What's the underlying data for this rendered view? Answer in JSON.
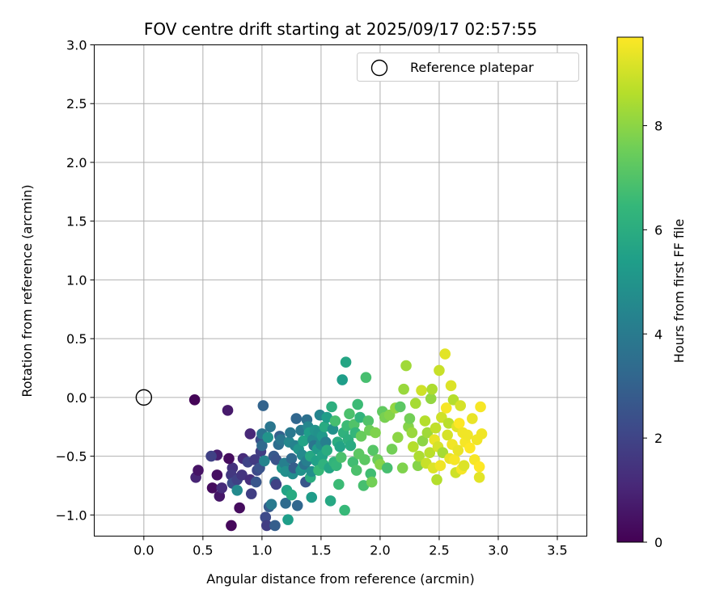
{
  "chart_data": {
    "type": "scatter",
    "title": "FOV centre drift starting at 2025/09/17 02:57:55",
    "xlabel": "Angular distance from reference (arcmin)",
    "ylabel": "Rotation from reference (arcmin)",
    "xlim": [
      -0.42,
      3.75
    ],
    "ylim": [
      -1.18,
      3.0
    ],
    "xticks": [
      0.0,
      0.5,
      1.0,
      1.5,
      2.0,
      2.5,
      3.0,
      3.5
    ],
    "xtick_labels": [
      "0.0",
      "0.5",
      "1.0",
      "1.5",
      "2.0",
      "2.5",
      "3.0",
      "3.5"
    ],
    "yticks": [
      -1.0,
      -0.5,
      0.0,
      0.5,
      1.0,
      1.5,
      2.0,
      2.5,
      3.0
    ],
    "ytick_labels": [
      "−1.0",
      "−0.5",
      "0.0",
      "0.5",
      "1.0",
      "1.5",
      "2.0",
      "2.5",
      "3.0"
    ],
    "grid": true,
    "legend": {
      "placement": "upper-right",
      "entries": [
        {
          "label": "Reference platepar",
          "marker": "open-circle"
        }
      ]
    },
    "reference_point": {
      "x": 0.0,
      "y": 0.0
    },
    "colorbar": {
      "label": "Hours from first FF file",
      "colormap": "viridis",
      "range": [
        0,
        9.7
      ],
      "ticks": [
        0,
        2,
        4,
        6,
        8
      ],
      "tick_labels": [
        "0",
        "2",
        "4",
        "6",
        "8"
      ]
    },
    "colors": [
      "#440154",
      "#482878",
      "#3e4989",
      "#31688e",
      "#26828e",
      "#1f9e89",
      "#35b779",
      "#6ece58",
      "#b5de2b",
      "#fde725"
    ],
    "points": [
      [
        0.43,
        -0.02,
        0.1
      ],
      [
        0.71,
        -0.11,
        0.7
      ],
      [
        0.74,
        -1.09,
        0.2
      ],
      [
        0.81,
        -0.94,
        0.3
      ],
      [
        0.44,
        -0.68,
        1.0
      ],
      [
        0.46,
        -0.62,
        0.5
      ],
      [
        0.58,
        -0.77,
        0.3
      ],
      [
        0.62,
        -0.66,
        0.4
      ],
      [
        0.64,
        -0.84,
        0.6
      ],
      [
        0.66,
        -0.77,
        1.2
      ],
      [
        0.62,
        -0.49,
        0.8
      ],
      [
        0.57,
        -0.5,
        1.9
      ],
      [
        0.75,
        -0.6,
        1.4
      ],
      [
        0.74,
        -0.66,
        1.6
      ],
      [
        0.72,
        -0.52,
        0.3
      ],
      [
        0.75,
        -0.73,
        2.3
      ],
      [
        0.79,
        -0.7,
        1.9
      ],
      [
        0.79,
        -0.79,
        4.6
      ],
      [
        0.83,
        -0.66,
        1.5
      ],
      [
        0.84,
        -0.52,
        1.2
      ],
      [
        0.88,
        -0.55,
        2.0
      ],
      [
        0.9,
        -0.7,
        1.3
      ],
      [
        0.91,
        -0.82,
        1.8
      ],
      [
        0.9,
        -0.31,
        1.1
      ],
      [
        0.94,
        -0.53,
        1.7
      ],
      [
        0.96,
        -0.62,
        2.2
      ],
      [
        0.98,
        -0.6,
        2.5
      ],
      [
        0.99,
        -0.36,
        2.4
      ],
      [
        0.99,
        -0.46,
        1.8
      ],
      [
        0.95,
        -0.72,
        2.6
      ],
      [
        1.0,
        -0.41,
        3.3
      ],
      [
        1.0,
        -0.31,
        3.7
      ],
      [
        1.01,
        -0.07,
        3.1
      ],
      [
        1.03,
        -1.02,
        2.2
      ],
      [
        1.04,
        -1.09,
        1.8
      ],
      [
        1.02,
        -0.54,
        4.4
      ],
      [
        1.05,
        -0.34,
        5.0
      ],
      [
        1.07,
        -0.25,
        3.8
      ],
      [
        1.06,
        -0.93,
        2.8
      ],
      [
        1.08,
        -0.91,
        4.0
      ],
      [
        1.11,
        -0.72,
        3.6
      ],
      [
        1.12,
        -0.74,
        1.9
      ],
      [
        1.11,
        -1.09,
        2.9
      ],
      [
        1.1,
        -0.5,
        2.7
      ],
      [
        1.12,
        -0.53,
        2.5
      ],
      [
        1.14,
        -0.4,
        3.5
      ],
      [
        1.15,
        -0.33,
        3.0
      ],
      [
        1.16,
        -0.36,
        3.8
      ],
      [
        1.17,
        -0.6,
        5.2
      ],
      [
        1.19,
        -0.56,
        4.2
      ],
      [
        1.2,
        -0.9,
        3.4
      ],
      [
        1.2,
        -0.63,
        4.8
      ],
      [
        1.21,
        -0.79,
        5.6
      ],
      [
        1.22,
        -1.04,
        5.4
      ],
      [
        1.23,
        -0.38,
        4.5
      ],
      [
        1.24,
        -0.3,
        3.9
      ],
      [
        1.25,
        -0.52,
        3.3
      ],
      [
        1.25,
        -0.83,
        5.9
      ],
      [
        1.26,
        -0.65,
        4.7
      ],
      [
        1.27,
        -0.6,
        2.9
      ],
      [
        1.28,
        -0.41,
        4.3
      ],
      [
        1.29,
        -0.18,
        3.2
      ],
      [
        1.3,
        -0.92,
        3.2
      ],
      [
        1.31,
        -0.44,
        5.1
      ],
      [
        1.33,
        -0.62,
        4.9
      ],
      [
        1.33,
        -0.28,
        4.0
      ],
      [
        1.34,
        -0.49,
        4.6
      ],
      [
        1.35,
        -0.58,
        5.2
      ],
      [
        1.35,
        -0.37,
        5.6
      ],
      [
        1.36,
        -0.57,
        3.7
      ],
      [
        1.37,
        -0.72,
        2.6
      ],
      [
        1.38,
        -0.54,
        4.2
      ],
      [
        1.38,
        -0.19,
        3.6
      ],
      [
        1.39,
        -0.25,
        4.5
      ],
      [
        1.4,
        -0.3,
        5.4
      ],
      [
        1.41,
        -0.68,
        6.0
      ],
      [
        1.41,
        -0.5,
        5.8
      ],
      [
        1.42,
        -0.63,
        4.8
      ],
      [
        1.42,
        -0.85,
        5.3
      ],
      [
        1.43,
        -0.36,
        4.6
      ],
      [
        1.44,
        -0.41,
        3.8
      ],
      [
        1.45,
        -0.28,
        5.0
      ],
      [
        1.46,
        -0.54,
        5.5
      ],
      [
        1.47,
        -0.44,
        5.3
      ],
      [
        1.48,
        -0.3,
        4.9
      ],
      [
        1.48,
        -0.62,
        6.5
      ],
      [
        1.49,
        -0.15,
        4.4
      ],
      [
        1.5,
        -0.4,
        4.7
      ],
      [
        1.51,
        -0.5,
        5.6
      ],
      [
        1.51,
        -0.33,
        5.2
      ],
      [
        1.52,
        -0.57,
        6.2
      ],
      [
        1.53,
        -0.25,
        5.9
      ],
      [
        1.54,
        -0.38,
        4.2
      ],
      [
        1.55,
        -0.45,
        6.0
      ],
      [
        1.55,
        -0.17,
        5.4
      ],
      [
        1.57,
        -0.6,
        5.7
      ],
      [
        1.58,
        -0.88,
        5.8
      ],
      [
        1.59,
        -0.08,
        6.1
      ],
      [
        1.6,
        -0.27,
        4.9
      ],
      [
        1.61,
        -0.55,
        6.3
      ],
      [
        1.62,
        -0.2,
        6.8
      ],
      [
        1.63,
        -0.58,
        6.4
      ],
      [
        1.64,
        -0.38,
        6.0
      ],
      [
        1.65,
        -0.74,
        6.6
      ],
      [
        1.66,
        -0.42,
        5.6
      ],
      [
        1.67,
        -0.51,
        6.9
      ],
      [
        1.68,
        0.15,
        5.4
      ],
      [
        1.69,
        -0.3,
        6.2
      ],
      [
        1.7,
        -0.96,
        6.5
      ],
      [
        1.71,
        0.3,
        5.7
      ],
      [
        1.72,
        -0.24,
        6.6
      ],
      [
        1.73,
        -0.36,
        6.1
      ],
      [
        1.74,
        -0.14,
        6.9
      ],
      [
        1.75,
        -0.41,
        5.9
      ],
      [
        1.77,
        -0.55,
        6.7
      ],
      [
        1.78,
        -0.23,
        7.0
      ],
      [
        1.79,
        -0.3,
        6.4
      ],
      [
        1.8,
        -0.62,
        6.9
      ],
      [
        1.81,
        -0.06,
        6.6
      ],
      [
        1.82,
        -0.48,
        7.2
      ],
      [
        1.83,
        -0.17,
        6.3
      ],
      [
        1.84,
        -0.33,
        7.4
      ],
      [
        1.86,
        -0.75,
        6.8
      ],
      [
        1.87,
        -0.53,
        7.2
      ],
      [
        1.88,
        0.17,
        6.8
      ],
      [
        1.9,
        -0.2,
        7.0
      ],
      [
        1.91,
        -0.28,
        7.5
      ],
      [
        1.92,
        -0.65,
        6.7
      ],
      [
        1.93,
        -0.72,
        7.6
      ],
      [
        1.94,
        -0.45,
        7.1
      ],
      [
        1.96,
        -0.3,
        7.8
      ],
      [
        1.98,
        -0.53,
        7.5
      ],
      [
        2.0,
        -0.57,
        7.9
      ],
      [
        2.02,
        -0.12,
        7.3
      ],
      [
        2.04,
        -0.17,
        7.7
      ],
      [
        2.06,
        -0.6,
        6.8
      ],
      [
        2.08,
        -0.15,
        7.9
      ],
      [
        2.1,
        -0.44,
        7.6
      ],
      [
        2.13,
        -0.09,
        8.1
      ],
      [
        2.15,
        -0.34,
        8.0
      ],
      [
        2.17,
        -0.08,
        7.2
      ],
      [
        2.19,
        -0.6,
        7.8
      ],
      [
        2.2,
        0.07,
        8.2
      ],
      [
        2.22,
        0.27,
        8.3
      ],
      [
        2.24,
        -0.25,
        7.9
      ],
      [
        2.25,
        -0.18,
        7.6
      ],
      [
        2.27,
        -0.3,
        8.2
      ],
      [
        2.28,
        -0.42,
        8.6
      ],
      [
        2.3,
        -0.05,
        8.4
      ],
      [
        2.32,
        -0.58,
        7.9
      ],
      [
        2.33,
        -0.5,
        8.5
      ],
      [
        2.35,
        0.06,
        9.0
      ],
      [
        2.36,
        -0.37,
        8.0
      ],
      [
        2.38,
        -0.2,
        8.6
      ],
      [
        2.39,
        -0.56,
        8.9
      ],
      [
        2.4,
        -0.3,
        8.3
      ],
      [
        2.42,
        -0.47,
        8.7
      ],
      [
        2.43,
        -0.01,
        8.1
      ],
      [
        2.44,
        0.07,
        8.5
      ],
      [
        2.45,
        -0.6,
        9.2
      ],
      [
        2.46,
        -0.36,
        9.4
      ],
      [
        2.47,
        -0.26,
        8.8
      ],
      [
        2.48,
        -0.7,
        8.6
      ],
      [
        2.49,
        -0.42,
        9.1
      ],
      [
        2.5,
        0.23,
        8.9
      ],
      [
        2.51,
        -0.58,
        9.5
      ],
      [
        2.52,
        -0.17,
        9.0
      ],
      [
        2.53,
        -0.47,
        8.4
      ],
      [
        2.55,
        0.37,
        9.3
      ],
      [
        2.56,
        -0.09,
        9.6
      ],
      [
        2.57,
        -0.32,
        9.1
      ],
      [
        2.58,
        -0.22,
        8.7
      ],
      [
        2.59,
        -0.52,
        9.4
      ],
      [
        2.6,
        0.1,
        9.2
      ],
      [
        2.61,
        -0.4,
        9.5
      ],
      [
        2.62,
        -0.02,
        8.6
      ],
      [
        2.63,
        -0.53,
        9.6
      ],
      [
        2.64,
        -0.64,
        9.0
      ],
      [
        2.65,
        -0.25,
        9.3
      ],
      [
        2.66,
        -0.45,
        9.4
      ],
      [
        2.67,
        -0.22,
        9.7
      ],
      [
        2.68,
        -0.07,
        9.1
      ],
      [
        2.69,
        -0.61,
        9.6
      ],
      [
        2.7,
        -0.3,
        9.5
      ],
      [
        2.71,
        -0.58,
        9.2
      ],
      [
        2.72,
        -0.38,
        9.6
      ],
      [
        2.74,
        -0.32,
        9.5
      ],
      [
        2.76,
        -0.43,
        9.7
      ],
      [
        2.78,
        -0.18,
        9.4
      ],
      [
        2.8,
        -0.53,
        9.6
      ],
      [
        2.82,
        -0.36,
        9.5
      ],
      [
        2.84,
        -0.59,
        9.7
      ],
      [
        2.84,
        -0.68,
        9.3
      ],
      [
        2.85,
        -0.08,
        9.6
      ],
      [
        2.86,
        -0.31,
        9.5
      ]
    ]
  }
}
